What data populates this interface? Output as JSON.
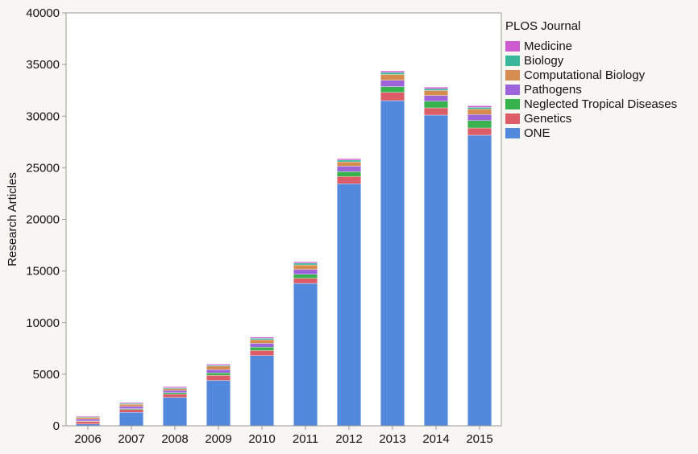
{
  "colors": {
    "background": "#f7f6f3",
    "plot_background": "#ffffff",
    "axis": "#9a9a9a",
    "bar_separator": "#ffffff",
    "series": {
      "Medicine": "#cf5bd0",
      "Biology": "#38b89a",
      "Computational Biology": "#d58c4e",
      "Pathogens": "#9d63db",
      "Neglected Tropical Diseases": "#37b24d",
      "Genetics": "#dc5d68",
      "ONE": "#5289dc"
    }
  },
  "legend": {
    "title": "PLOS Journal",
    "items": [
      {
        "label": "Medicine",
        "color": "#cf5bd0"
      },
      {
        "label": "Biology",
        "color": "#38b89a"
      },
      {
        "label": "Computational Biology",
        "color": "#d58c4e"
      },
      {
        "label": "Pathogens",
        "color": "#9d63db"
      },
      {
        "label": "Neglected Tropical Diseases",
        "color": "#37b24d"
      },
      {
        "label": "Genetics",
        "color": "#dc5d68"
      },
      {
        "label": "ONE",
        "color": "#5289dc"
      }
    ]
  },
  "chart_data": {
    "type": "bar",
    "stacked": true,
    "title": "",
    "xlabel": "",
    "ylabel": "Research Articles",
    "categories": [
      "2006",
      "2007",
      "2008",
      "2009",
      "2010",
      "2011",
      "2012",
      "2013",
      "2014",
      "2015"
    ],
    "ylim": [
      0,
      40000
    ],
    "yticks": [
      0,
      5000,
      10000,
      15000,
      20000,
      25000,
      30000,
      35000,
      40000
    ],
    "grid": false,
    "legend_position": "right",
    "series": [
      {
        "name": "ONE",
        "values": [
          180,
          1300,
          2750,
          4400,
          6800,
          13800,
          23450,
          31500,
          30100,
          28150
        ]
      },
      {
        "name": "Genetics",
        "values": [
          250,
          280,
          320,
          500,
          500,
          500,
          700,
          800,
          700,
          700
        ]
      },
      {
        "name": "Neglected Tropical Diseases",
        "values": [
          40,
          80,
          140,
          230,
          320,
          380,
          480,
          560,
          640,
          720
        ]
      },
      {
        "name": "Pathogens",
        "values": [
          180,
          220,
          220,
          320,
          370,
          470,
          520,
          620,
          560,
          580
        ]
      },
      {
        "name": "Computational Biology",
        "values": [
          170,
          200,
          170,
          330,
          350,
          440,
          420,
          560,
          480,
          540
        ]
      },
      {
        "name": "Biology",
        "values": [
          70,
          80,
          90,
          100,
          130,
          170,
          170,
          190,
          170,
          160
        ]
      },
      {
        "name": "Medicine",
        "values": [
          60,
          90,
          100,
          100,
          120,
          130,
          140,
          150,
          150,
          150
        ]
      }
    ]
  }
}
